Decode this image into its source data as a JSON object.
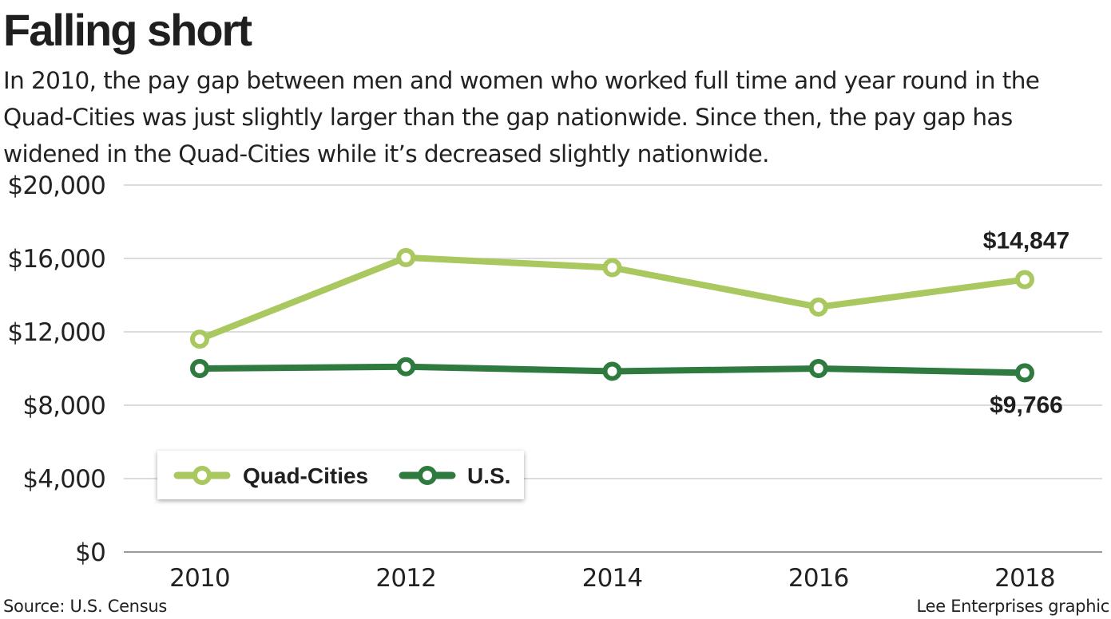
{
  "header": {
    "title": "Falling short",
    "subtitle": "In 2010, the pay gap between men and women who worked full time and year round in the Quad-Cities was just slightly larger than the gap nationwide. Since then, the pay gap has widened in the Quad-Cities while it’s decreased slightly nationwide."
  },
  "footer": {
    "source": "Source: U.S. Census",
    "credit": "Lee Enterprises graphic"
  },
  "colors": {
    "quad_cities": "#a9c85f",
    "us": "#2f7a3e",
    "grid": "#cfcfcf",
    "axis": "#9a9a9a"
  },
  "chart_data": {
    "type": "line",
    "title": "Falling short",
    "xlabel": "",
    "ylabel": "",
    "x": [
      2010,
      2012,
      2014,
      2016,
      2018
    ],
    "x_tick_labels": [
      "2010",
      "2012",
      "2014",
      "2016",
      "2018"
    ],
    "y_ticks": [
      0,
      4000,
      8000,
      12000,
      16000,
      20000
    ],
    "y_tick_labels": [
      "$0",
      "$4,000",
      "$8,000",
      "$12,000",
      "$16,000",
      "$20,000"
    ],
    "ylim": [
      0,
      20000
    ],
    "grid": true,
    "legend_position": "bottom-left",
    "series": [
      {
        "name": "Quad-Cities",
        "values": [
          11600,
          16050,
          15500,
          13350,
          14847
        ],
        "end_label": "$14,847"
      },
      {
        "name": "U.S.",
        "values": [
          10000,
          10100,
          9850,
          10000,
          9766
        ],
        "end_label": "$9,766"
      }
    ]
  }
}
